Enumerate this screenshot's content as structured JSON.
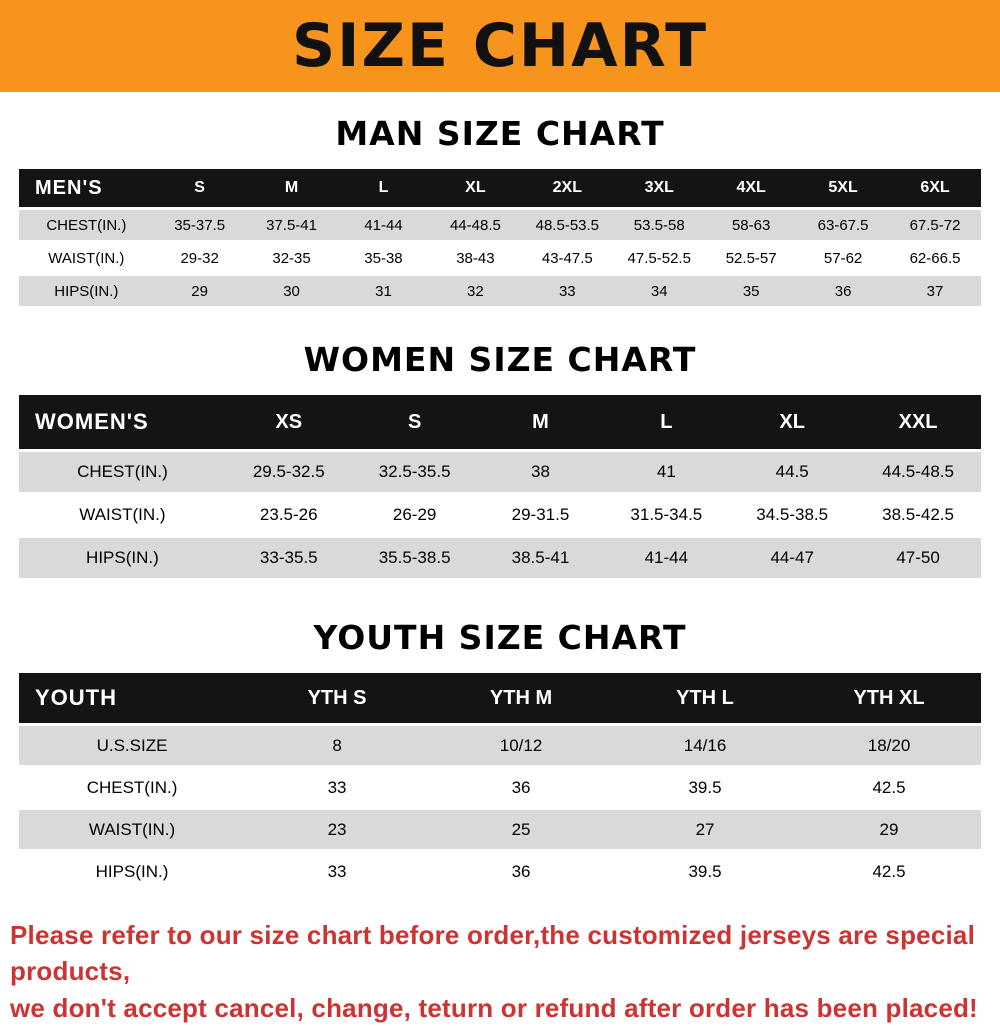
{
  "banner": {
    "title": "SIZE CHART"
  },
  "colors": {
    "banner-bg": "#f7941d",
    "header-bg": "#141414",
    "row-gray": "#d9d9d9",
    "footer-red": "#cc3333"
  },
  "sections": {
    "men": {
      "heading": "MAN SIZE CHART",
      "table": {
        "header": [
          "MEN'S",
          "S",
          "M",
          "L",
          "XL",
          "2XL",
          "3XL",
          "4XL",
          "5XL",
          "6XL"
        ],
        "rows": [
          [
            "CHEST(IN.)",
            "35-37.5",
            "37.5-41",
            "41-44",
            "44-48.5",
            "48.5-53.5",
            "53.5-58",
            "58-63",
            "63-67.5",
            "67.5-72"
          ],
          [
            "WAIST(IN.)",
            "29-32",
            "32-35",
            "35-38",
            "38-43",
            "43-47.5",
            "47.5-52.5",
            "52.5-57",
            "57-62",
            "62-66.5"
          ],
          [
            "HIPS(IN.)",
            "29",
            "30",
            "31",
            "32",
            "33",
            "34",
            "35",
            "36",
            "37"
          ]
        ]
      }
    },
    "women": {
      "heading": "WOMEN SIZE CHART",
      "table": {
        "header": [
          "WOMEN'S",
          "XS",
          "S",
          "M",
          "L",
          "XL",
          "XXL"
        ],
        "rows": [
          [
            "CHEST(IN.)",
            "29.5-32.5",
            "32.5-35.5",
            "38",
            "41",
            "44.5",
            "44.5-48.5"
          ],
          [
            "WAIST(IN.)",
            "23.5-26",
            "26-29",
            "29-31.5",
            "31.5-34.5",
            "34.5-38.5",
            "38.5-42.5"
          ],
          [
            "HIPS(IN.)",
            "33-35.5",
            "35.5-38.5",
            "38.5-41",
            "41-44",
            "44-47",
            "47-50"
          ]
        ]
      }
    },
    "youth": {
      "heading": "YOUTH SIZE CHART",
      "table": {
        "header": [
          "YOUTH",
          "YTH S",
          "YTH M",
          "YTH L",
          "YTH XL"
        ],
        "rows": [
          [
            "U.S.SIZE",
            "8",
            "10/12",
            "14/16",
            "18/20"
          ],
          [
            "CHEST(IN.)",
            "33",
            "36",
            "39.5",
            "42.5"
          ],
          [
            "WAIST(IN.)",
            "23",
            "25",
            "27",
            "29"
          ],
          [
            "HIPS(IN.)",
            "33",
            "36",
            "39.5",
            "42.5"
          ]
        ]
      }
    }
  },
  "footer": {
    "line1": "Please refer to our size chart before order,the customized jerseys are special products,",
    "line2": "we don't accept cancel, change, teturn or refund after order has been placed!"
  }
}
